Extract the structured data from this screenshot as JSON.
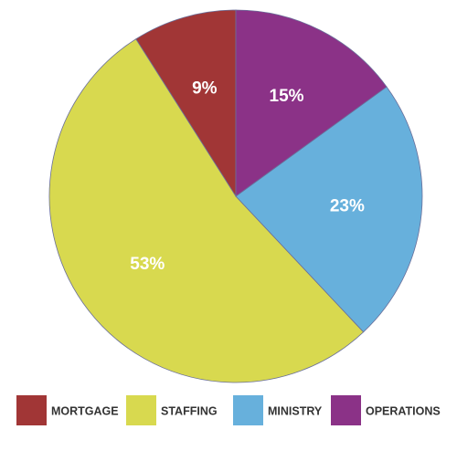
{
  "chart_data": {
    "type": "pie",
    "categories": [
      "MORTGAGE",
      "STAFFING",
      "MINISTRY",
      "OPERATIONS"
    ],
    "values": [
      9,
      53,
      23,
      15
    ],
    "value_labels": [
      "9%",
      "53%",
      "23%",
      "15%"
    ],
    "colors": [
      "#a13636",
      "#d8d94f",
      "#67b0dc",
      "#8b3287"
    ],
    "legend": "bottom"
  }
}
